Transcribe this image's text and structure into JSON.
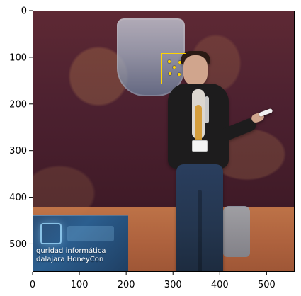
{
  "plot": {
    "x_ticks": [
      0,
      100,
      200,
      300,
      400,
      500
    ],
    "y_ticks": [
      0,
      100,
      200,
      300,
      400,
      500
    ],
    "x_range": [
      0,
      560
    ],
    "y_range": [
      0,
      560
    ]
  },
  "photo": {
    "banner_line1": "guridad informática",
    "banner_line2": "dalajara HoneyCon"
  },
  "overlay": {
    "face_box": {
      "x0": 274,
      "y0": 90,
      "x1": 327,
      "y1": 157,
      "color": "#ffd400"
    },
    "landmarks": [
      {
        "x": 291,
        "y": 107
      },
      {
        "x": 313,
        "y": 110
      },
      {
        "x": 301,
        "y": 120
      },
      {
        "x": 292,
        "y": 133
      },
      {
        "x": 312,
        "y": 135
      }
    ]
  },
  "colors": {
    "axis": "#000000",
    "face_box": "#ffd400"
  }
}
